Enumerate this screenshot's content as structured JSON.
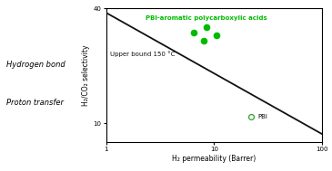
{
  "chart_data": {
    "type": "scatter",
    "xlabel": "H₂ permeability (Barrer)",
    "ylabel": "H₂/CO₂ selectivity",
    "log": true,
    "xlim": [
      1,
      100
    ],
    "ylim": [
      8,
      40
    ],
    "xticks": [
      1,
      10,
      100
    ],
    "yticks": [
      10,
      40
    ],
    "grid": false,
    "series": [
      {
        "name": "Upper bound 150 °C",
        "type": "line",
        "color": "#111111",
        "x": [
          1,
          100
        ],
        "values": [
          38,
          8.8
        ]
      },
      {
        "name": "PBI-aromatic polycarboxylic acids",
        "type": "scatter",
        "color": "#00bb00",
        "marker": "o",
        "x": [
          6.5,
          8.5,
          8.0,
          10.5
        ],
        "values": [
          30,
          32,
          27,
          29
        ]
      },
      {
        "name": "PBI",
        "type": "scatter",
        "marker": "o",
        "x": [
          22
        ],
        "values": [
          10.8
        ]
      }
    ],
    "annotations": [
      "Hydrogen bond",
      "Proton transfer"
    ]
  }
}
